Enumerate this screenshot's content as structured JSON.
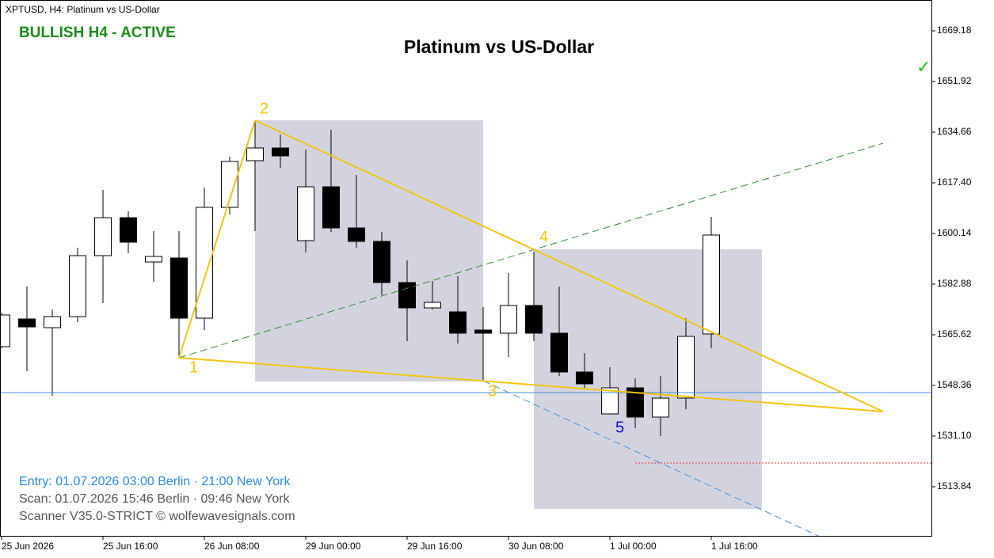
{
  "chart_data": {
    "type": "candlestick",
    "symbol_header": "XPTUSD, H4:  Platinum vs US-Dollar",
    "status": "BULLISH H4 - ACTIVE",
    "title": "Platinum vs US-Dollar",
    "footer_lines": [
      "Entry: 01.07.2026  03:00 Berlin · 21:00 New York",
      "Scan:  01.07.2026  15:46 Berlin · 09:46 New York",
      "Scanner V35.0-STRICT   © wolfewavesignals.com"
    ],
    "wave_labels": [
      "1",
      "2",
      "3",
      "4",
      "5"
    ],
    "check_mark": "✓",
    "categories": [
      "25 Jun 2026",
      null,
      null,
      null,
      "25 Jun 16:00",
      null,
      null,
      null,
      "26 Jun 08:00",
      null,
      null,
      null,
      "29 Jun 00:00",
      null,
      null,
      null,
      "29 Jun 16:00",
      null,
      null,
      null,
      "30 Jun 08:00",
      null,
      null,
      null,
      "1 Jul 00:00",
      null,
      null,
      null,
      "1 Jul 16:00"
    ],
    "open": [
      1561.57,
      1571.01,
      1568.04,
      1571.82,
      1592.59,
      1605.53,
      1590.43,
      1591.78,
      1571.28,
      1609.04,
      1624.95,
      1629.27,
      1597.71,
      1616.05,
      1602.03,
      1597.44,
      1583.42,
      1574.79,
      1573.44,
      1567.24,
      1566.16,
      1575.6,
      1566.16,
      1552.94,
      1538.65,
      1547.55,
      1537.57,
      1544.04,
      1565.89
    ],
    "high": [
      1573.17,
      1582.07,
      1574.25,
      1595.28,
      1614.97,
      1607.69,
      1600.95,
      1600.95,
      1615.78,
      1626.3,
      1638.44,
      1633.85,
      1628.73,
      1635.47,
      1620.1,
      1600.68,
      1590.97,
      1583.96,
      1585.57,
      1575.06,
      1586.65,
      1593.94,
      1582.07,
      1559.41,
      1554.56,
      1550.78,
      1551.59,
      1571.28,
      1605.8
    ],
    "low": [
      1561.03,
      1553.21,
      1544.85,
      1569.93,
      1576.4,
      1593.4,
      1583.69,
      1557.8,
      1567.24,
      1606.61,
      1600.95,
      1622.52,
      1593.67,
      1600.68,
      1595.28,
      1579.1,
      1563.46,
      1574.25,
      1562.65,
      1550.24,
      1558.07,
      1563.46,
      1551.59,
      1547.55,
      1538.65,
      1533.79,
      1531.1,
      1540.27,
      1561.03
    ],
    "close": [
      1572.36,
      1568.31,
      1571.82,
      1592.59,
      1605.53,
      1597.17,
      1592.32,
      1571.28,
      1609.04,
      1624.68,
      1629.27,
      1626.57,
      1616.05,
      1602.03,
      1597.44,
      1583.42,
      1574.79,
      1576.67,
      1566.16,
      1566.16,
      1575.6,
      1566.16,
      1552.94,
      1548.9,
      1547.55,
      1537.57,
      1544.04,
      1565.08,
      1599.6
    ],
    "up_color": "#ffffff",
    "down_color": "#000000",
    "ylim": [
      1496.84,
      1679.7
    ],
    "yticks": [
      1513.84,
      {
        "value": 1531.1,
        "label": "1531.10"
      },
      1548.36,
      1565.62,
      1582.88,
      1600.14,
      {
        "value": 1617.4,
        "label": "1617.40"
      },
      1634.66,
      1651.92,
      1669.18
    ],
    "grid": false
  }
}
